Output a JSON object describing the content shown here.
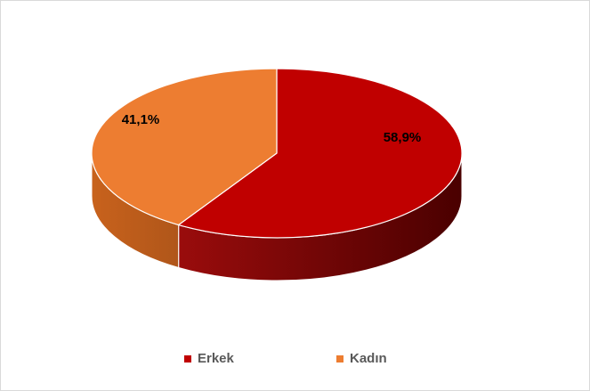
{
  "chart_data": {
    "type": "pie",
    "title": "",
    "three_d": true,
    "legend_position": "bottom",
    "categories": [
      "Erkek",
      "Kadın"
    ],
    "values": [
      58.9,
      41.1
    ],
    "data_labels": [
      "58,9%",
      "41,1%"
    ],
    "colors": [
      "#c00000",
      "#ed7d31"
    ],
    "side_colors": [
      "#8e0000",
      "#c8611c"
    ]
  }
}
